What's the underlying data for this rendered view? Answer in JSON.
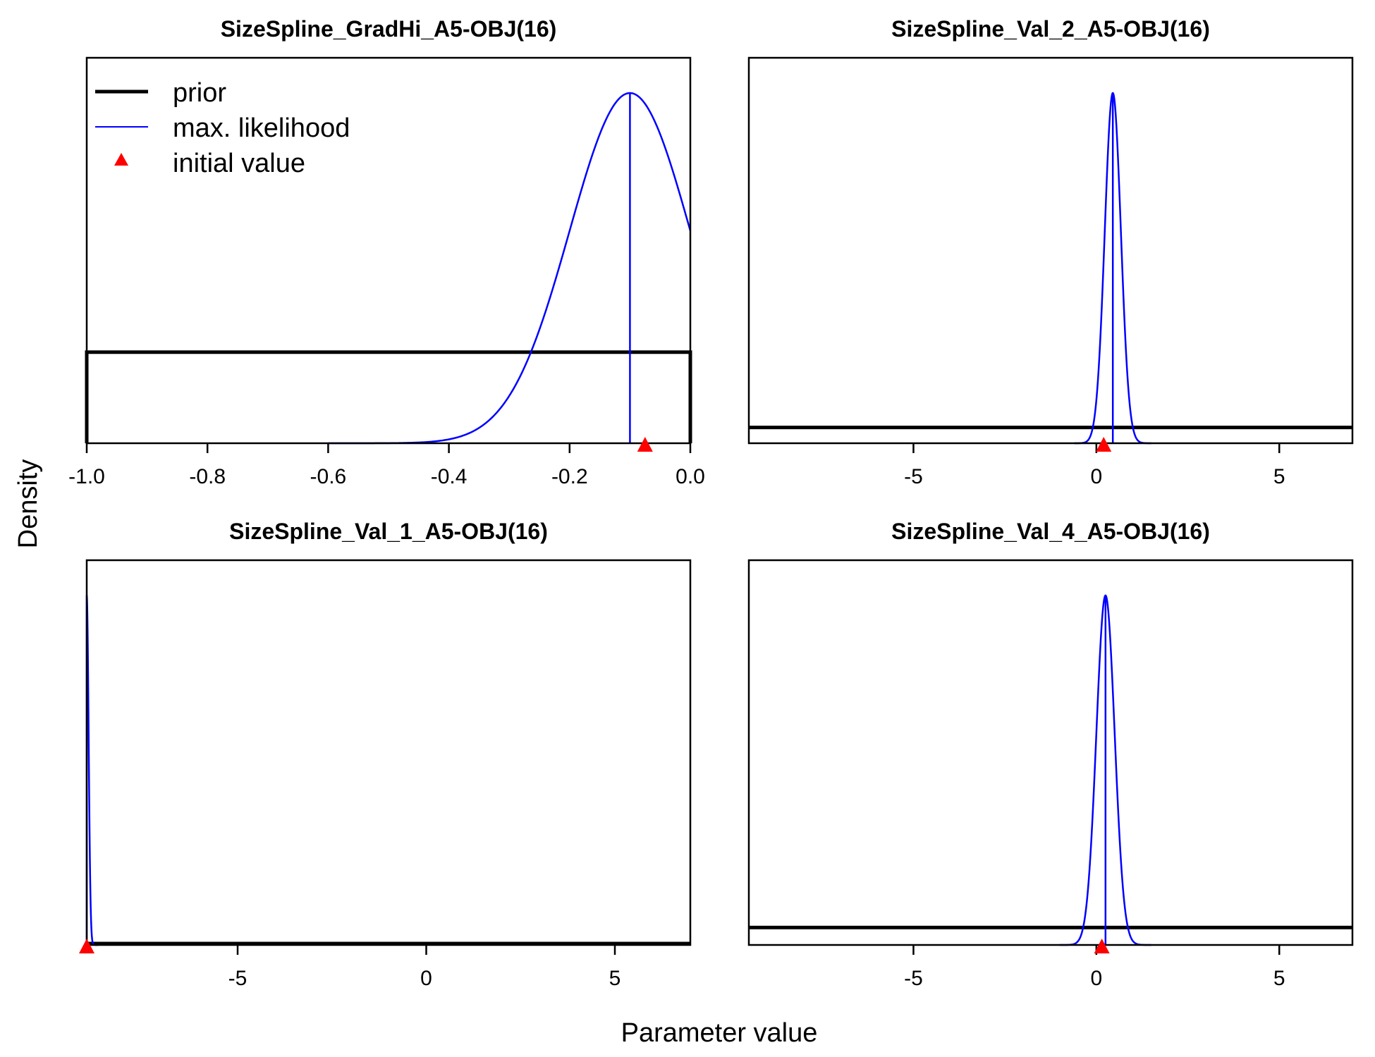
{
  "figure": {
    "xlabel": "Parameter value",
    "ylabel": "Density",
    "colors": {
      "prior": "#000000",
      "mle": "#0000ff",
      "initial": "#ff0000"
    }
  },
  "legend": {
    "placement": "top-left",
    "entries": [
      {
        "label": "prior",
        "kind": "thick-line"
      },
      {
        "label": "max. likelihood",
        "kind": "thin-line"
      },
      {
        "label": "initial value",
        "kind": "triangle"
      }
    ]
  },
  "chart_data": [
    {
      "type": "line",
      "title": "SizeSpline_GradHi_A5-OBJ(16)",
      "xlim": [
        -1.0,
        0.0
      ],
      "ticks": [
        -1.0,
        -0.8,
        -0.6,
        -0.4,
        -0.2,
        0.0
      ],
      "tick_labels": [
        "-1.0",
        "-0.8",
        "-0.6",
        "-0.4",
        "-0.2",
        "0.0"
      ],
      "prior": {
        "shape": "uniform",
        "lo": -1.0,
        "hi": 0.0,
        "level": 0.26
      },
      "mle": {
        "mean": -0.1,
        "sd": 0.1,
        "peak": 1.0,
        "xmin": -0.6,
        "xmax": 0.0
      },
      "initial": -0.075
    },
    {
      "type": "line",
      "title": "SizeSpline_Val_2_A5-OBJ(16)",
      "xlim": [
        -9.5,
        7.0
      ],
      "ticks": [
        -5,
        0,
        5
      ],
      "tick_labels": [
        "-5",
        "0",
        "5"
      ],
      "prior": {
        "shape": "flat",
        "lo": -9.5,
        "hi": 7.0,
        "level": 0.045
      },
      "mle": {
        "mean": 0.45,
        "sd": 0.22,
        "peak": 1.0,
        "xmin": -0.6,
        "xmax": 1.5
      },
      "initial": 0.2
    },
    {
      "type": "line",
      "title": "SizeSpline_Val_1_A5-OBJ(16)",
      "xlim": [
        -9.0,
        7.0
      ],
      "ticks": [
        -5,
        0,
        5
      ],
      "tick_labels": [
        "-5",
        "0",
        "5"
      ],
      "prior": {
        "shape": "flat",
        "lo": -9.0,
        "hi": 7.0,
        "level": 0.004
      },
      "mle": {
        "mean": -9.0,
        "sd": 0.05,
        "peak": 1.0,
        "xmin": -9.0,
        "xmax": -8.7
      },
      "initial": -9.0
    },
    {
      "type": "line",
      "title": "SizeSpline_Val_4_A5-OBJ(16)",
      "xlim": [
        -9.5,
        7.0
      ],
      "ticks": [
        -5,
        0,
        5
      ],
      "tick_labels": [
        "-5",
        "0",
        "5"
      ],
      "prior": {
        "shape": "flat",
        "lo": -9.5,
        "hi": 7.0,
        "level": 0.05
      },
      "mle": {
        "mean": 0.25,
        "sd": 0.25,
        "peak": 1.0,
        "xmin": -1.0,
        "xmax": 1.5
      },
      "initial": 0.15
    }
  ]
}
